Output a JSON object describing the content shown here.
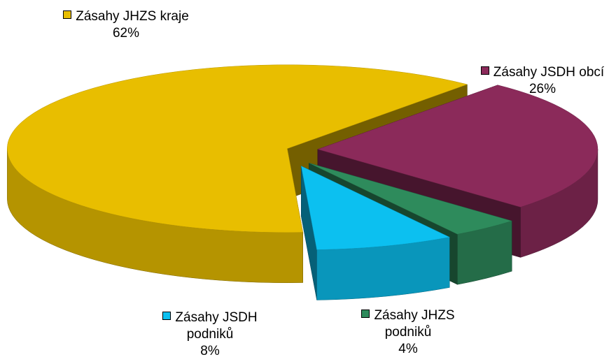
{
  "chart_data": {
    "type": "pie3d",
    "categories": [
      "Zásahy JHZS kraje",
      "Zásahy JSDH obcí",
      "Zásahy JHZS podniků",
      "Zásahy JSDH podniků"
    ],
    "values": [
      62,
      26,
      4,
      8
    ],
    "value_labels": [
      "62%",
      "26%",
      "4%",
      "8%"
    ],
    "colors": [
      "#e8be00",
      "#8b2a5a",
      "#2e8b5c",
      "#0cc0f0"
    ]
  }
}
